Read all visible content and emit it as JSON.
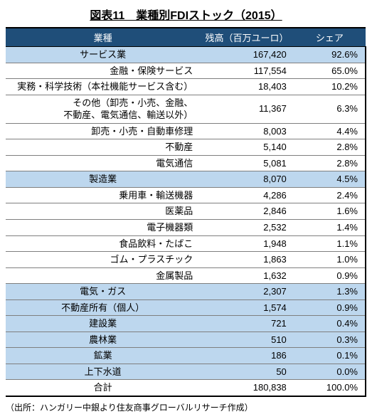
{
  "title": "図表11　業種別FDIストック（2015）",
  "header_bg": "#1f4e79",
  "sector_row_bg": "#bdd7ee",
  "columns": [
    "業種",
    "残高（百万ユーロ）",
    "シェア"
  ],
  "rows": [
    {
      "label": "サービス業",
      "value": "167,420",
      "share": "92.6%",
      "type": "sector"
    },
    {
      "label": "金融・保険サービス",
      "value": "117,554",
      "share": "65.0%",
      "type": "sub"
    },
    {
      "label": "実務・科学技術（本社機能サービス含む）",
      "value": "18,403",
      "share": "10.2%",
      "type": "sub"
    },
    {
      "label": "その他（卸売・小売、金融、\n不動産、電気通信、輸送以外）",
      "value": "11,367",
      "share": "6.3%",
      "type": "sub"
    },
    {
      "label": "卸売・小売・自動車修理",
      "value": "8,003",
      "share": "4.4%",
      "type": "sub"
    },
    {
      "label": "不動産",
      "value": "5,140",
      "share": "2.8%",
      "type": "sub"
    },
    {
      "label": "電気通信",
      "value": "5,081",
      "share": "2.8%",
      "type": "sub"
    },
    {
      "label": "製造業",
      "value": "8,070",
      "share": "4.5%",
      "type": "sector"
    },
    {
      "label": "乗用車・輸送機器",
      "value": "4,286",
      "share": "2.4%",
      "type": "sub"
    },
    {
      "label": "医薬品",
      "value": "2,846",
      "share": "1.6%",
      "type": "sub"
    },
    {
      "label": "電子機器類",
      "value": "2,532",
      "share": "1.4%",
      "type": "sub"
    },
    {
      "label": "食品飲料・たばこ",
      "value": "1,948",
      "share": "1.1%",
      "type": "sub"
    },
    {
      "label": "ゴム・プラスチック",
      "value": "1,863",
      "share": "1.0%",
      "type": "sub"
    },
    {
      "label": "金属製品",
      "value": "1,632",
      "share": "0.9%",
      "type": "sub"
    },
    {
      "label": "電気・ガス",
      "value": "2,307",
      "share": "1.3%",
      "type": "sector"
    },
    {
      "label": "不動産所有（個人）",
      "value": "1,574",
      "share": "0.9%",
      "type": "sector"
    },
    {
      "label": "建設業",
      "value": "721",
      "share": "0.4%",
      "type": "sector"
    },
    {
      "label": "農林業",
      "value": "510",
      "share": "0.3%",
      "type": "sector"
    },
    {
      "label": "鉱業",
      "value": "186",
      "share": "0.1%",
      "type": "sector"
    },
    {
      "label": "上下水道",
      "value": "50",
      "share": "0.0%",
      "type": "sector"
    },
    {
      "label": "合計",
      "value": "180,838",
      "share": "100.0%",
      "type": "total"
    }
  ],
  "source": "（出所：ハンガリー中銀より住友商事グローバルリサーチ作成）"
}
